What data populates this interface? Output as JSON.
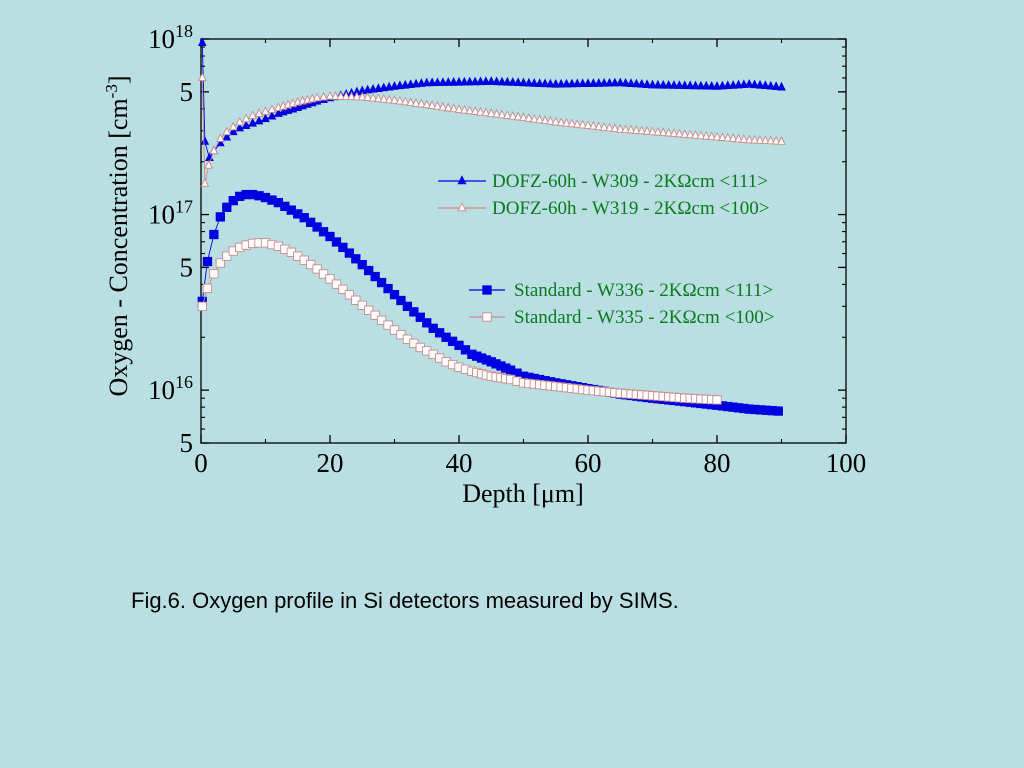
{
  "caption": "Fig.6. Oxygen profile in Si detectors measured by SIMS.",
  "chart_data": {
    "type": "scatter",
    "xlabel": "Depth [μm]",
    "ylabel": "Oxygen - Concentration  [cm",
    "ylabel_sup": "-3",
    "ylabel_end": "]",
    "x_scale": "linear",
    "y_scale": "log",
    "xlim": [
      0,
      100
    ],
    "ylim": [
      5000000000000000.0,
      1e+18
    ],
    "x_ticks": [
      {
        "value": 0,
        "label": "0"
      },
      {
        "value": 20,
        "label": "20"
      },
      {
        "value": 40,
        "label": "40"
      },
      {
        "value": 60,
        "label": "60"
      },
      {
        "value": 80,
        "label": "80"
      },
      {
        "value": 100,
        "label": "100"
      }
    ],
    "y_ticks": [
      {
        "value": 1e+18,
        "base": "10",
        "exp": "18"
      },
      {
        "value": 5e+17,
        "base": "5",
        "exp": ""
      },
      {
        "value": 1e+17,
        "base": "10",
        "exp": "17"
      },
      {
        "value": 5e+16,
        "base": "5",
        "exp": ""
      },
      {
        "value": 1e+16,
        "base": "10",
        "exp": "16"
      },
      {
        "value": 5000000000000000.0,
        "base": "5",
        "exp": ""
      }
    ],
    "grid": false,
    "legend_position": "right",
    "series": [
      {
        "name": "DOFZ-60h - W309 - 2KΩcm <111>",
        "color": "#0000e0",
        "marker": "triangle-filled",
        "x": [
          0.2,
          0.6,
          1.3,
          2,
          3,
          4,
          5,
          6,
          8,
          10,
          12,
          15,
          18,
          20,
          25,
          30,
          35,
          40,
          45,
          50,
          55,
          60,
          65,
          70,
          75,
          80,
          85,
          90
        ],
        "y": [
          9.5e+17,
          2.6e+17,
          2.1e+17,
          2.3e+17,
          2.55e+17,
          2.75e+17,
          2.95e+17,
          3.1e+17,
          3.3e+17,
          3.5e+17,
          3.75e+17,
          4.05e+17,
          4.4e+17,
          4.6e+17,
          5.05e+17,
          5.35e+17,
          5.6e+17,
          5.65e+17,
          5.7e+17,
          5.6e+17,
          5.5e+17,
          5.55e+17,
          5.6e+17,
          5.45e+17,
          5.4e+17,
          5.35e+17,
          5.5e+17,
          5.3e+17
        ]
      },
      {
        "name": "DOFZ-60h - W319 - 2KΩcm <100>",
        "color": "#cc8a8a",
        "marker": "triangle-open",
        "x": [
          0.2,
          0.6,
          1.2,
          2,
          3,
          4,
          6,
          8,
          10,
          12,
          15,
          18,
          20,
          25,
          30,
          35,
          40,
          45,
          50,
          55,
          60,
          65,
          70,
          75,
          80,
          85,
          90
        ],
        "y": [
          6e+17,
          1.5e+17,
          1.9e+17,
          2.3e+17,
          2.7e+17,
          2.95e+17,
          3.35e+17,
          3.65e+17,
          3.85e+17,
          4.05e+17,
          4.35e+17,
          4.6e+17,
          4.7e+17,
          4.65e+17,
          4.45e+17,
          4.2e+17,
          3.95e+17,
          3.75e+17,
          3.55e+17,
          3.35e+17,
          3.2e+17,
          3.05e+17,
          2.95e+17,
          2.85e+17,
          2.75e+17,
          2.65e+17,
          2.6e+17
        ]
      },
      {
        "name": "Standard - W336 - 2KΩcm <111>",
        "color": "#0000e0",
        "marker": "square-filled",
        "x": [
          0.2,
          1,
          2,
          3,
          4,
          5,
          6,
          7,
          8,
          9,
          10,
          12,
          14,
          16,
          18,
          20,
          22,
          24,
          26,
          28,
          30,
          32,
          34,
          36,
          38,
          40,
          42,
          45,
          48,
          50,
          55,
          60,
          65,
          70,
          75,
          80,
          85,
          89.5
        ],
        "y": [
          3.2e+16,
          5.4e+16,
          7.7e+16,
          9.7e+16,
          1.1e+17,
          1.2e+17,
          1.27e+17,
          1.3e+17,
          1.3e+17,
          1.28e+17,
          1.25e+17,
          1.17e+17,
          1.06e+17,
          9.6e+16,
          8.5e+16,
          7.5e+16,
          6.5e+16,
          5.6e+16,
          4.8e+16,
          4.1e+16,
          3.5e+16,
          3e+16,
          2.6e+16,
          2.25e+16,
          2e+16,
          1.8e+16,
          1.6e+16,
          1.45e+16,
          1.3e+16,
          1.2e+16,
          1.1e+16,
          1.02e+16,
          9500000000000000.0,
          9000000000000000.0,
          8600000000000000.0,
          8200000000000000.0,
          7800000000000000.0,
          7600000000000000.0
        ]
      },
      {
        "name": "Standard - W335 - 2KΩcm <100>",
        "color": "#cc8a8a",
        "marker": "square-open",
        "x": [
          0.2,
          1,
          2,
          3,
          4,
          5,
          6,
          7,
          8,
          9,
          10,
          12,
          14,
          16,
          18,
          20,
          22,
          24,
          26,
          28,
          30,
          32,
          34,
          36,
          38,
          40,
          42,
          45,
          48,
          50,
          55,
          60,
          65,
          70,
          75,
          80
        ],
        "y": [
          3e+16,
          3.8e+16,
          4.6e+16,
          5.3e+16,
          5.8e+16,
          6.2e+16,
          6.5e+16,
          6.7e+16,
          6.85e+16,
          6.9e+16,
          6.9e+16,
          6.6e+16,
          6.1e+16,
          5.5e+16,
          4.9e+16,
          4.3e+16,
          3.75e+16,
          3.25e+16,
          2.85e+16,
          2.5e+16,
          2.2e+16,
          1.95e+16,
          1.75e+16,
          1.6e+16,
          1.45e+16,
          1.35e+16,
          1.28e+16,
          1.2e+16,
          1.15e+16,
          1.1e+16,
          1.05e+16,
          1e+16,
          9600000000000000.0,
          9300000000000000.0,
          9000000000000000.0,
          8800000000000000.0
        ]
      }
    ]
  }
}
